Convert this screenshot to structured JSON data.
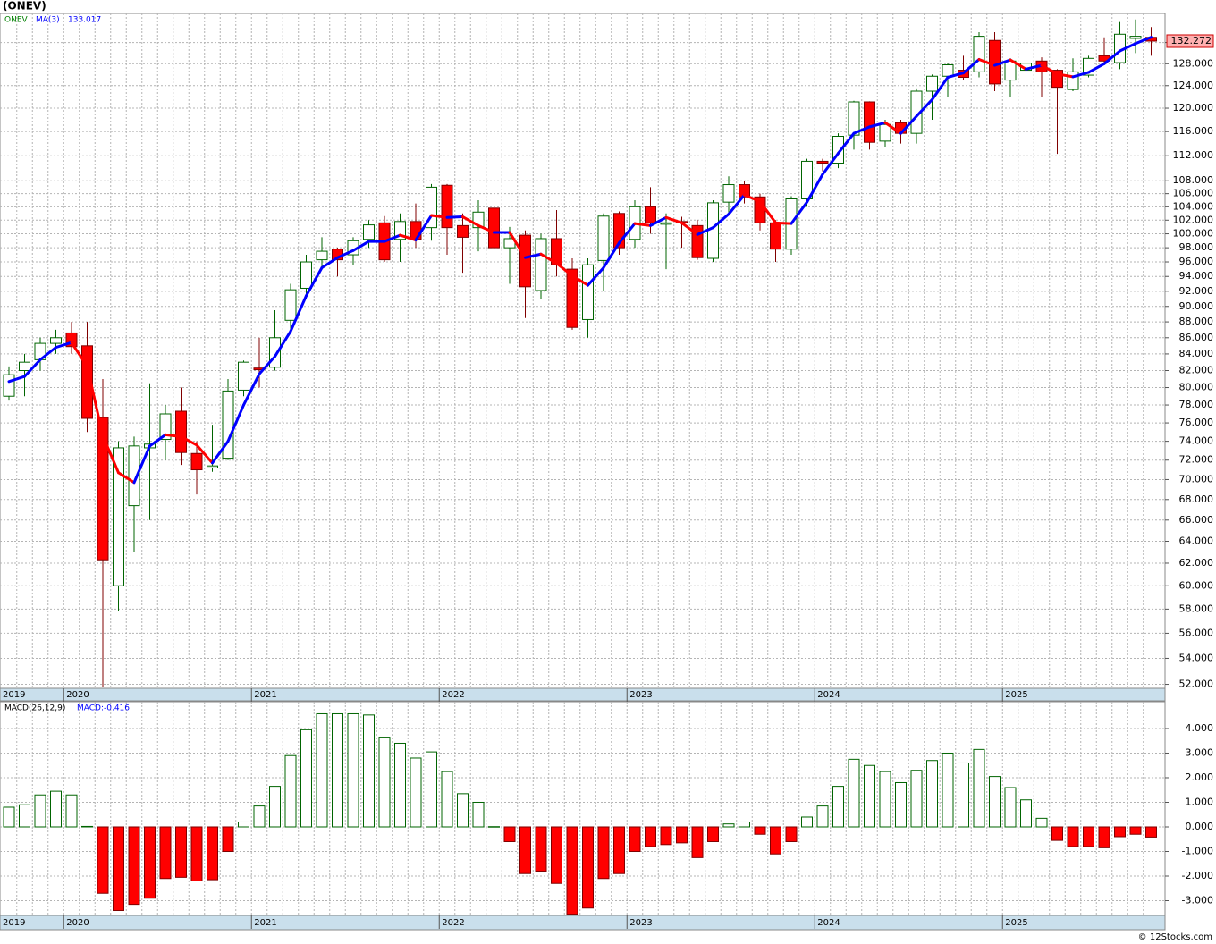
{
  "chart_data": [
    {
      "type": "candlestick",
      "title": "(ONEV)",
      "symbol": "ONEV",
      "log_scale": true,
      "grid": true,
      "categories": [
        "2019",
        null,
        null,
        null,
        "2020",
        null,
        null,
        null,
        null,
        null,
        null,
        null,
        null,
        null,
        null,
        null,
        "2021",
        null,
        null,
        null,
        null,
        null,
        null,
        null,
        null,
        null,
        null,
        null,
        "2022",
        null,
        null,
        null,
        null,
        null,
        null,
        null,
        null,
        null,
        null,
        null,
        "2023",
        null,
        null,
        null,
        null,
        null,
        null,
        null,
        null,
        null,
        null,
        null,
        "2024",
        null,
        null,
        null,
        null,
        null,
        null,
        null,
        null,
        null,
        null,
        null,
        "2025",
        null,
        null,
        null,
        null,
        null,
        null,
        null,
        null,
        null
      ],
      "open": [
        79,
        82,
        83.3,
        85.3,
        86.6,
        85,
        76.6,
        60,
        67.4,
        73.3,
        74.2,
        77.3,
        72.7,
        71.2,
        72.2,
        79.7,
        82.3,
        82.4,
        88.2,
        92.4,
        96.3,
        97.8,
        97,
        99.2,
        101.6,
        99.2,
        101.8,
        100.9,
        107.3,
        101.2,
        100.9,
        103.8,
        98,
        99.8,
        92.1,
        99.3,
        95,
        88.3,
        96.2,
        103,
        99.2,
        104,
        101.4,
        101.8,
        101.2,
        96.5,
        104.7,
        107.4,
        105.5,
        101.6,
        97.8,
        105.2,
        111.1,
        110.8,
        115.4,
        121.1,
        114.4,
        117.5,
        115.7,
        123,
        125.7,
        126.8,
        126.5,
        132.4,
        125,
        126.8,
        128.5,
        126.8,
        123.3,
        125.9,
        129.5,
        128.2,
        132.8,
        133
      ],
      "high": [
        82.5,
        84,
        86,
        87,
        88,
        88,
        81,
        74,
        74.5,
        80.5,
        78,
        80,
        74,
        75.8,
        81,
        83.2,
        86,
        89.5,
        93,
        97,
        99.5,
        98,
        99.5,
        102,
        102.6,
        103,
        104.5,
        107.5,
        107.5,
        103,
        105,
        105.5,
        101,
        100.5,
        100,
        103.5,
        96.5,
        96.5,
        103,
        103.3,
        105,
        107,
        103,
        102.5,
        102,
        105,
        108.7,
        108,
        106,
        102,
        105.6,
        111.5,
        111.5,
        115.7,
        121.3,
        121.2,
        118,
        118,
        123.5,
        126,
        128.2,
        129.5,
        134,
        134,
        129,
        129,
        129.2,
        127,
        129,
        129.5,
        133,
        136,
        136.5,
        135
      ],
      "low": [
        78.5,
        79,
        82,
        84,
        84,
        75,
        51.8,
        57.8,
        63,
        66,
        72,
        71.5,
        68.5,
        70.8,
        72,
        79,
        80,
        82,
        87,
        91,
        95,
        94,
        95.5,
        98,
        96,
        96,
        98,
        99,
        97,
        94.5,
        97.5,
        97,
        93,
        88.5,
        91,
        94,
        87,
        86,
        92,
        97,
        98,
        100,
        95,
        98,
        96.3,
        96,
        103,
        104.5,
        100.5,
        96,
        97,
        104,
        109.5,
        110,
        113,
        113,
        113.5,
        114,
        114,
        118,
        122,
        125,
        125.5,
        123,
        122,
        126,
        122,
        112.3,
        123,
        125.5,
        128,
        127,
        130,
        129.5
      ],
      "close": [
        81.5,
        83,
        85.3,
        86,
        84.9,
        76.5,
        62.3,
        73.3,
        73.5,
        73.7,
        77,
        72.8,
        71,
        71.4,
        79.6,
        83,
        82.1,
        86,
        92.2,
        96,
        97.5,
        96.3,
        99,
        101.3,
        96.3,
        101.8,
        99.2,
        107,
        100.9,
        99.5,
        103.2,
        98,
        99.3,
        92.6,
        99.3,
        95.6,
        87.3,
        95.6,
        102.6,
        98,
        104,
        101.6,
        101.6,
        101.6,
        96.6,
        104.6,
        107.4,
        105.5,
        101.6,
        97.8,
        105.2,
        111.1,
        110.8,
        115.2,
        121.1,
        114.2,
        117.2,
        115.7,
        123,
        125.7,
        127.8,
        125.5,
        133.2,
        124.3,
        128.5,
        128.1,
        126.5,
        123.7,
        126.5,
        129,
        128.5,
        133.6,
        133.2,
        132.272
      ],
      "up_color": "#ffffff",
      "up_edge": "#006400",
      "down_color": "#ff0000",
      "down_edge": "#800000",
      "ma": {
        "name": "MA(3)",
        "rise_color": "#0000ff",
        "fall_color": "#ff0000",
        "values": [
          80.7,
          81.3,
          83.3,
          84.8,
          85.4,
          82.5,
          74.6,
          70.7,
          69.7,
          73.5,
          74.7,
          74.5,
          73.6,
          71.7,
          74,
          78,
          81.6,
          83.7,
          86.8,
          91.4,
          95.2,
          96.6,
          97.6,
          98.9,
          98.9,
          99.8,
          99.1,
          102.7,
          102.4,
          102.5,
          101.2,
          100.2,
          100.2,
          96.6,
          97.1,
          95.8,
          94.1,
          92.8,
          95.2,
          98.7,
          101.5,
          101.2,
          102.4,
          101.6,
          99.9,
          100.9,
          102.9,
          105.8,
          104.8,
          101.6,
          101.5,
          104.7,
          109,
          112.4,
          115.7,
          116.8,
          117.5,
          115.7,
          118.6,
          121.5,
          125.5,
          126.3,
          128.8,
          127.7,
          128.7,
          127,
          127.7,
          126.1,
          125.6,
          126.4,
          128,
          130.4,
          131.8,
          133.017
        ]
      },
      "ylim": [
        51.7,
        137.7
      ],
      "yticks": [
        {
          "value": 52,
          "label": "52.000"
        },
        {
          "value": 54,
          "label": "54.000"
        },
        {
          "value": 56,
          "label": "56.000"
        },
        {
          "value": 58,
          "label": "58.000"
        },
        {
          "value": 60,
          "label": "60.000"
        },
        {
          "value": 62,
          "label": "62.000"
        },
        {
          "value": 64,
          "label": "64.000"
        },
        {
          "value": 66,
          "label": "66.000"
        },
        {
          "value": 68,
          "label": "68.000"
        },
        {
          "value": 70,
          "label": "70.000"
        },
        {
          "value": 72,
          "label": "72.000"
        },
        {
          "value": 74,
          "label": "74.000"
        },
        {
          "value": 76,
          "label": "76.000"
        },
        {
          "value": 78,
          "label": "78.000"
        },
        {
          "value": 80,
          "label": "80.000"
        },
        {
          "value": 82,
          "label": "82.000"
        },
        {
          "value": 84,
          "label": "84.000"
        },
        {
          "value": 86,
          "label": "86.000"
        },
        {
          "value": 88,
          "label": "88.000"
        },
        {
          "value": 90,
          "label": "90.000"
        },
        {
          "value": 92,
          "label": "92.000"
        },
        {
          "value": 94,
          "label": "94.000"
        },
        {
          "value": 96,
          "label": "96.000"
        },
        {
          "value": 98,
          "label": "98.000"
        },
        {
          "value": 100,
          "label": "100.000"
        },
        {
          "value": 102,
          "label": "102.000"
        },
        {
          "value": 104,
          "label": "104.000"
        },
        {
          "value": 106,
          "label": "106.000"
        },
        {
          "value": 108,
          "label": "108.000"
        },
        {
          "value": 112,
          "label": "112.000"
        },
        {
          "value": 116,
          "label": "116.000"
        },
        {
          "value": 120,
          "label": "120.000"
        },
        {
          "value": 124,
          "label": "124.000"
        },
        {
          "value": 128,
          "label": "128.000"
        },
        {
          "value": 132,
          "label": "132.000"
        }
      ]
    },
    {
      "type": "bar",
      "name": "MACD(26,12,9)",
      "value_prefix": "MACD:",
      "grid": true,
      "up_color": "#ffffff",
      "up_edge": "#006400",
      "down_color": "#ff0000",
      "down_edge": "#800000",
      "values": [
        0.8,
        0.9,
        1.3,
        1.45,
        1.3,
        0.02,
        -2.7,
        -3.4,
        -3.15,
        -2.9,
        -2.1,
        -2.05,
        -2.2,
        -2.15,
        -1,
        0.2,
        0.85,
        1.65,
        2.9,
        3.95,
        4.6,
        4.6,
        4.6,
        4.55,
        3.65,
        3.4,
        2.8,
        3.05,
        2.25,
        1.35,
        1,
        0.01,
        -0.6,
        -1.9,
        -1.8,
        -2.3,
        -3.55,
        -3.3,
        -2.1,
        -1.9,
        -1,
        -0.8,
        -0.72,
        -0.65,
        -1.25,
        -0.6,
        0.12,
        0.2,
        -0.3,
        -1.1,
        -0.6,
        0.4,
        0.85,
        1.65,
        2.75,
        2.5,
        2.25,
        1.8,
        2.3,
        2.7,
        3,
        2.6,
        3.15,
        2.05,
        1.6,
        1.1,
        0.35,
        -0.55,
        -0.8,
        -0.8,
        -0.85,
        -0.4,
        -0.3,
        -0.416
      ],
      "ylim": [
        -3.6,
        5.09
      ],
      "yticks": [
        {
          "value": -3,
          "label": "-3.000"
        },
        {
          "value": -2,
          "label": "-2.000"
        },
        {
          "value": -1,
          "label": "-1.000"
        },
        {
          "value": 0,
          "label": "0.000"
        },
        {
          "value": 1,
          "label": "1.000"
        },
        {
          "value": 2,
          "label": "2.000"
        },
        {
          "value": 3,
          "label": "3.000"
        },
        {
          "value": 4,
          "label": "4.000"
        }
      ]
    }
  ],
  "credit": "© 12Stocks.com"
}
